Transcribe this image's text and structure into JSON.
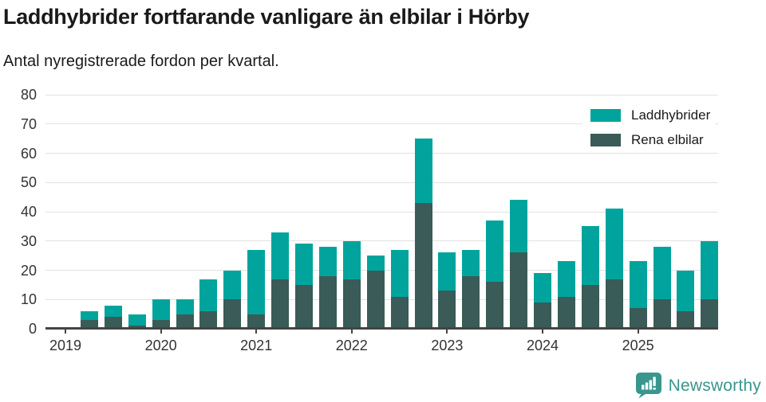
{
  "header": {
    "title": "Laddhybrider fortfarande vanligare än elbilar i Hörby",
    "subtitle": "Antal nyregistrerade fordon per kvartal."
  },
  "legend": {
    "items": [
      {
        "label": "Laddhybrider",
        "color": "#00a49c"
      },
      {
        "label": "Rena elbilar",
        "color": "#3a5b57"
      }
    ]
  },
  "footer": {
    "brand": "Newsworthy",
    "brand_color": "#38968e"
  },
  "colors": {
    "laddhybrider": "#00a49c",
    "rena_elbilar": "#3a5b57",
    "grid": "#e2e2e2",
    "axis": "#444444",
    "tick_text": "#333333"
  },
  "chart_data": {
    "type": "bar",
    "stacked": true,
    "title": "Laddhybrider fortfarande vanligare än elbilar i Hörby",
    "subtitle": "Antal nyregistrerade fordon per kvartal.",
    "xlabel": "",
    "ylabel": "Antal nyregistrerade fordon",
    "x": [
      "2019 Q1",
      "2019 Q2",
      "2019 Q3",
      "2019 Q4",
      "2020 Q1",
      "2020 Q2",
      "2020 Q3",
      "2020 Q4",
      "2021 Q1",
      "2021 Q2",
      "2021 Q3",
      "2021 Q4",
      "2022 Q1",
      "2022 Q2",
      "2022 Q3",
      "2022 Q4",
      "2023 Q1",
      "2023 Q2",
      "2023 Q3",
      "2023 Q4",
      "2024 Q1",
      "2024 Q2",
      "2024 Q3",
      "2024 Q4",
      "2025 Q1",
      "2025 Q2",
      "2025 Q3",
      "2025 Q4"
    ],
    "series": [
      {
        "name": "Laddhybrider",
        "color": "#00a49c",
        "values": [
          0,
          3,
          4,
          4,
          7,
          5,
          11,
          10,
          22,
          16,
          14,
          10,
          13,
          5,
          16,
          22,
          13,
          9,
          21,
          18,
          10,
          12,
          20,
          24,
          16,
          18,
          14,
          20
        ]
      },
      {
        "name": "Rena elbilar",
        "color": "#3a5b57",
        "values": [
          0,
          3,
          4,
          1,
          3,
          5,
          6,
          10,
          5,
          17,
          15,
          18,
          17,
          20,
          11,
          43,
          13,
          18,
          16,
          26,
          9,
          11,
          15,
          17,
          7,
          10,
          6,
          10
        ]
      }
    ],
    "stack_order_bottom_to_top": [
      "Rena elbilar",
      "Laddhybrider"
    ],
    "totals": [
      0,
      6,
      8,
      5,
      10,
      10,
      17,
      20,
      27,
      33,
      29,
      28,
      30,
      25,
      27,
      65,
      26,
      27,
      37,
      44,
      19,
      23,
      35,
      41,
      23,
      28,
      20,
      30
    ],
    "y_ticks": [
      0,
      10,
      20,
      30,
      40,
      50,
      60,
      70,
      80
    ],
    "ylim": [
      0,
      80
    ],
    "year_labels": [
      "2019",
      "2020",
      "2021",
      "2022",
      "2023",
      "2024",
      "2025"
    ],
    "grid": true,
    "legend_position": "top-right"
  }
}
